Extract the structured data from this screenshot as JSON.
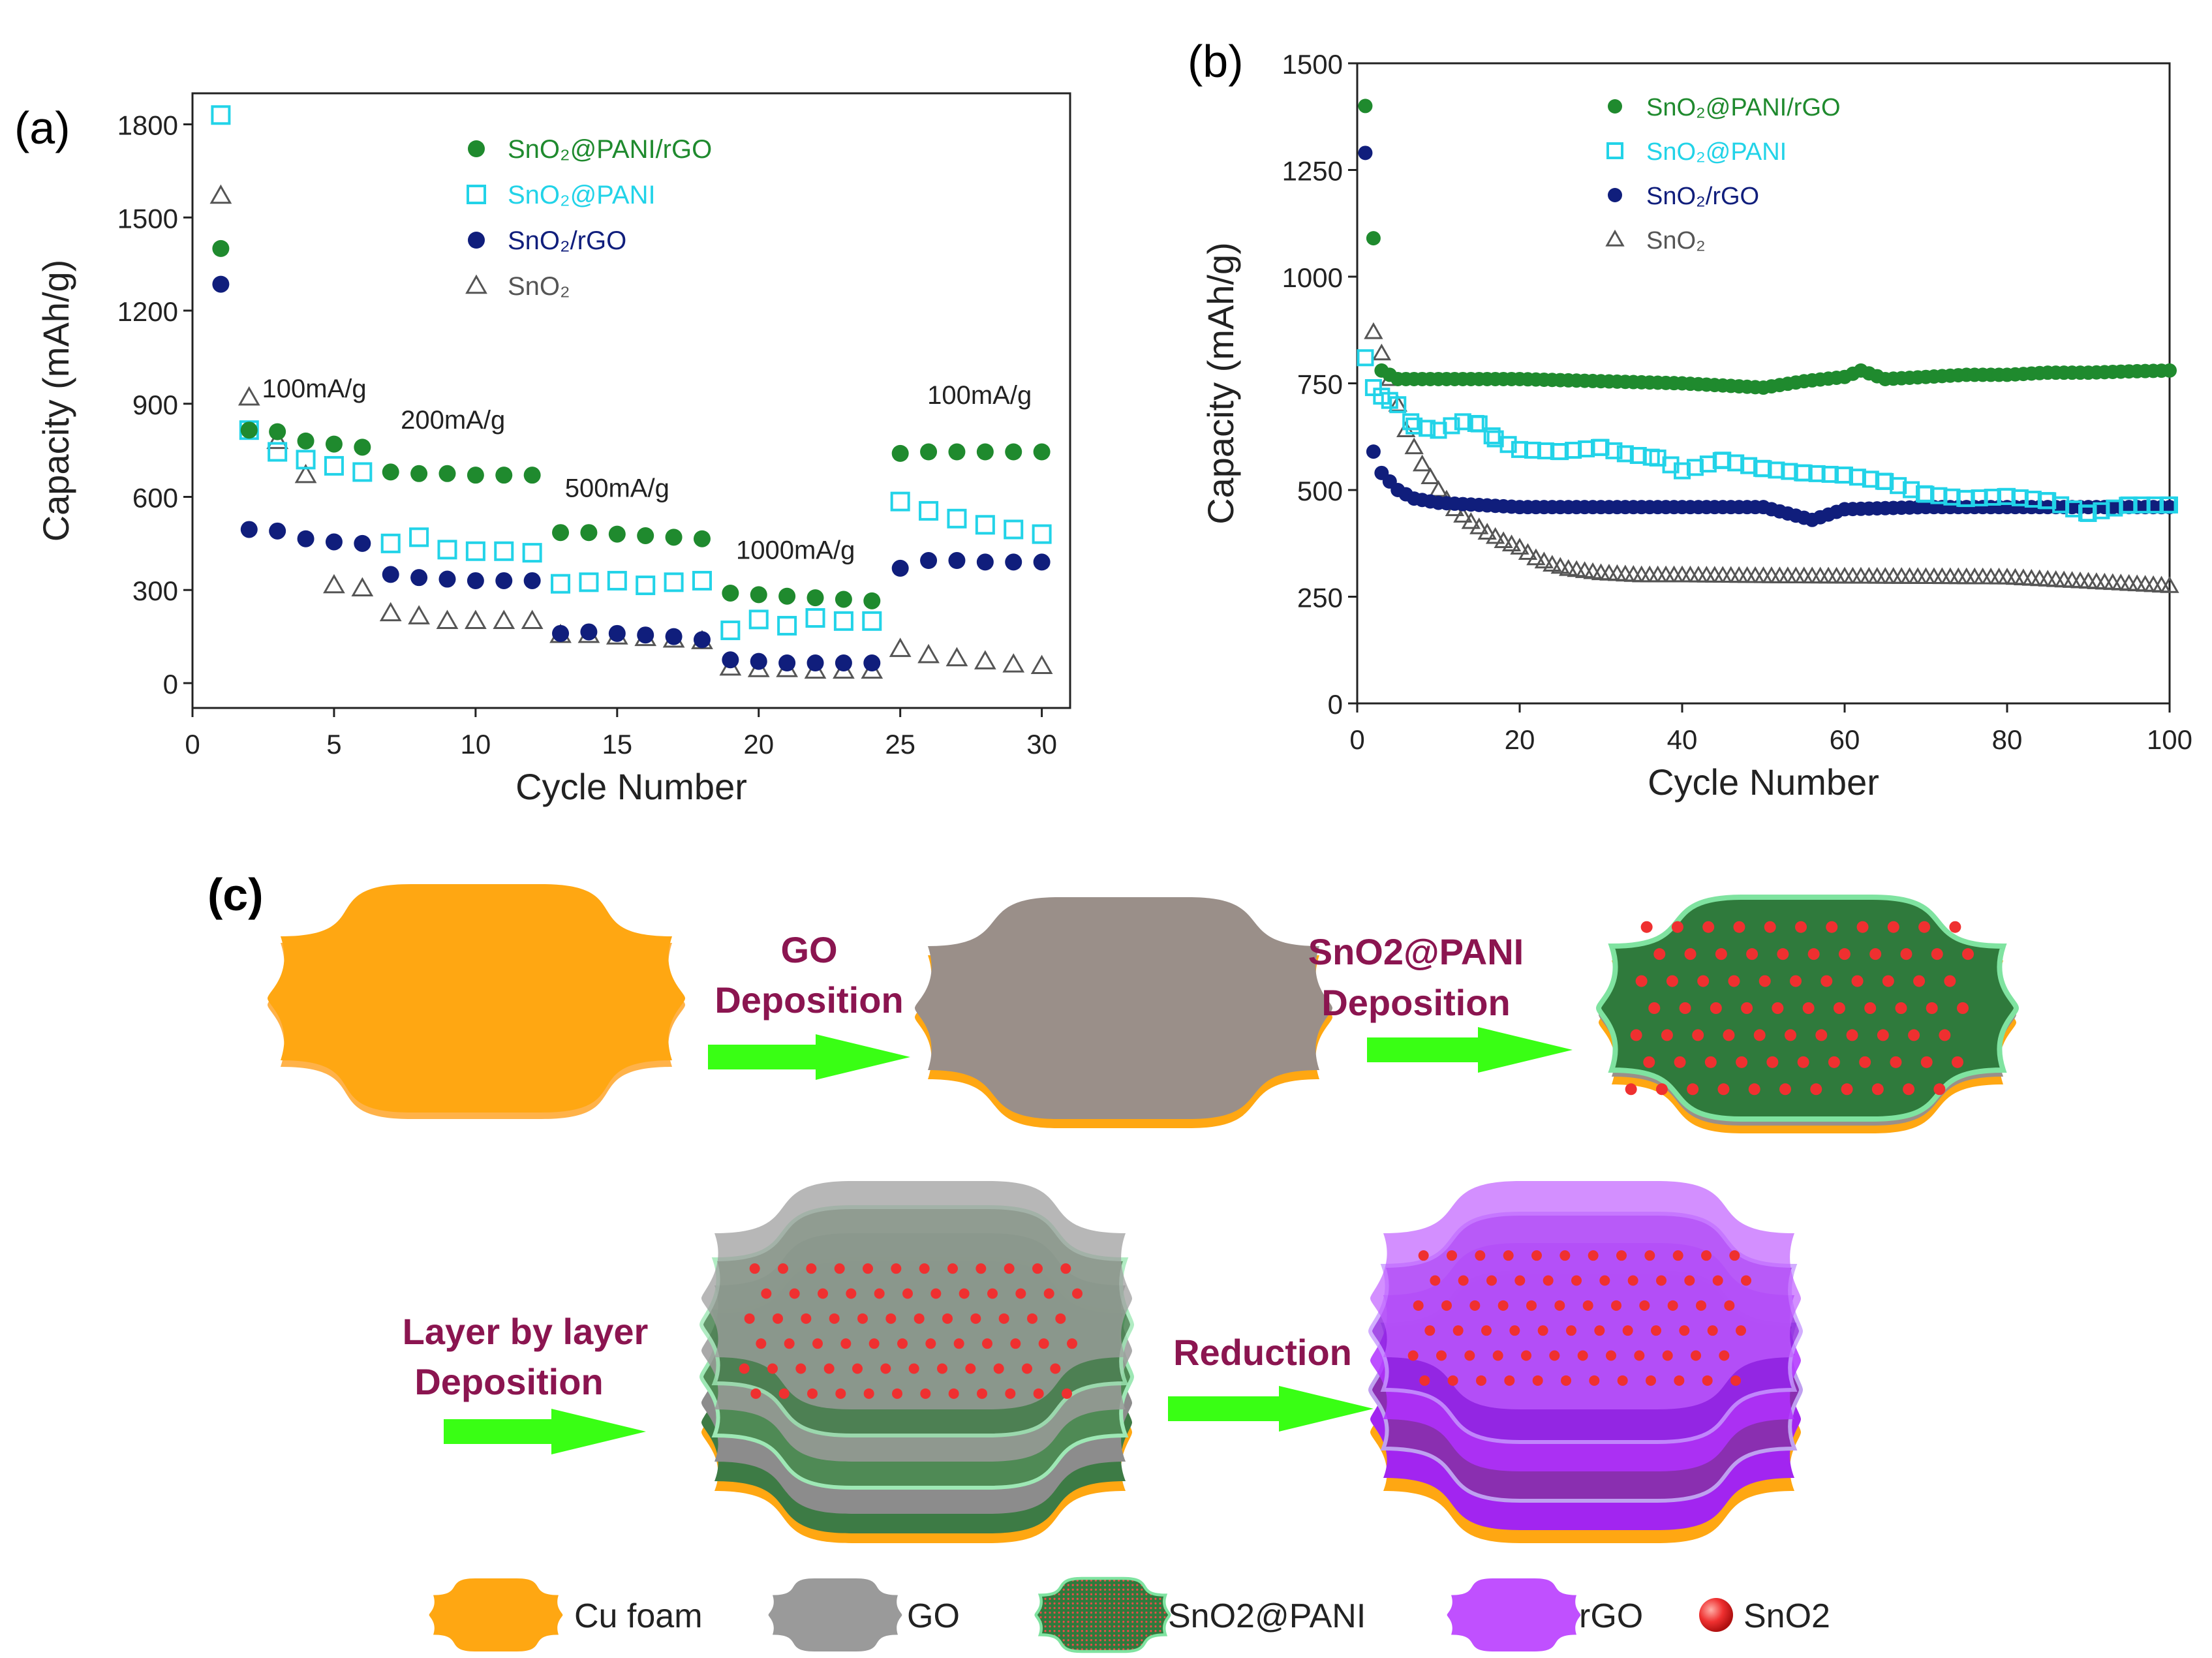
{
  "panel_a": {
    "label": "(a)"
  },
  "panel_b": {
    "label": "(b)"
  },
  "panel_c": {
    "label": "(c)",
    "step_go": [
      "GO",
      "Deposition"
    ],
    "step_sno2pani": [
      "SnO2@PANI",
      "Deposition"
    ],
    "step_lbl": [
      "Layer by layer",
      "Deposition"
    ],
    "step_reduction": [
      "Reduction"
    ],
    "legend": [
      "Cu foam",
      "GO",
      "SnO2@PANI",
      "rGO",
      "SnO2"
    ]
  },
  "colors": {
    "green": "#1f8a2e",
    "cyan": "#22d3e8",
    "navy": "#101e7c",
    "gray": "#555555",
    "copper": "#ffa712",
    "go": "#9a8f89",
    "magenta_text": "#8b1550",
    "arrow": "#39ff14",
    "rgo": "#b025ff",
    "sno2_dot": "#ef3030"
  },
  "chart_data": [
    {
      "type": "scatter",
      "xlabel": "Cycle Number",
      "ylabel": "Capacity (mAh/g)",
      "xlim": [
        0,
        31
      ],
      "ylim": [
        -80,
        1900
      ],
      "xticks": [
        0,
        5,
        10,
        15,
        20,
        25,
        30
      ],
      "yticks": [
        0,
        300,
        600,
        900,
        1200,
        1500,
        1800
      ],
      "legend_position": "top-center",
      "annotations": [
        {
          "text": "100mA/g",
          "x": 4.3,
          "y": 920
        },
        {
          "text": "200mA/g",
          "x": 9.2,
          "y": 820
        },
        {
          "text": "500mA/g",
          "x": 15.0,
          "y": 600
        },
        {
          "text": "1000mA/g",
          "x": 21.3,
          "y": 400
        },
        {
          "text": "100mA/g",
          "x": 27.8,
          "y": 900
        }
      ],
      "series": [
        {
          "name": "SnO₂@PANI/rGO",
          "marker": "filled-circle",
          "color": "#1f8a2e",
          "x": [
            1,
            2,
            3,
            4,
            5,
            6,
            7,
            8,
            9,
            10,
            11,
            12,
            13,
            14,
            15,
            16,
            17,
            18,
            19,
            20,
            21,
            22,
            23,
            24,
            25,
            26,
            27,
            28,
            29,
            30
          ],
          "y": [
            1400,
            815,
            810,
            780,
            770,
            760,
            680,
            675,
            675,
            670,
            670,
            670,
            485,
            485,
            480,
            475,
            470,
            465,
            290,
            285,
            280,
            275,
            270,
            265,
            740,
            745,
            745,
            745,
            745,
            745
          ]
        },
        {
          "name": "SnO₂@PANI",
          "marker": "open-square",
          "color": "#22d3e8",
          "x": [
            1,
            2,
            3,
            4,
            5,
            6,
            7,
            8,
            9,
            10,
            11,
            12,
            13,
            14,
            15,
            16,
            17,
            18,
            19,
            20,
            21,
            22,
            23,
            24,
            25,
            26,
            27,
            28,
            29,
            30
          ],
          "y": [
            1830,
            815,
            745,
            720,
            700,
            680,
            450,
            470,
            430,
            425,
            425,
            420,
            320,
            325,
            330,
            315,
            325,
            330,
            170,
            205,
            185,
            210,
            200,
            200,
            585,
            555,
            530,
            510,
            495,
            480
          ]
        },
        {
          "name": "SnO₂/rGO",
          "marker": "filled-circle",
          "color": "#101e7c",
          "x": [
            1,
            2,
            3,
            4,
            5,
            6,
            7,
            8,
            9,
            10,
            11,
            12,
            13,
            14,
            15,
            16,
            17,
            18,
            19,
            20,
            21,
            22,
            23,
            24,
            25,
            26,
            27,
            28,
            29,
            30
          ],
          "y": [
            1285,
            495,
            490,
            465,
            455,
            450,
            350,
            340,
            335,
            330,
            330,
            330,
            160,
            165,
            160,
            155,
            150,
            140,
            75,
            70,
            65,
            65,
            65,
            65,
            370,
            395,
            395,
            390,
            390,
            390
          ]
        },
        {
          "name": "SnO₂",
          "marker": "open-triangle",
          "color": "#555555",
          "x": [
            1,
            2,
            3,
            4,
            5,
            6,
            7,
            8,
            9,
            10,
            11,
            12,
            13,
            14,
            15,
            16,
            17,
            18,
            19,
            20,
            21,
            22,
            23,
            24,
            25,
            26,
            27,
            28,
            29,
            30
          ],
          "y": [
            1570,
            920,
            780,
            670,
            315,
            305,
            225,
            215,
            200,
            200,
            200,
            200,
            155,
            155,
            150,
            145,
            140,
            135,
            50,
            45,
            45,
            40,
            40,
            40,
            110,
            90,
            80,
            70,
            60,
            55
          ]
        }
      ]
    },
    {
      "type": "scatter",
      "xlabel": "Cycle Number",
      "ylabel": "Capacity (mAh/g)",
      "xlim": [
        0,
        100
      ],
      "ylim": [
        0,
        1500
      ],
      "xticks": [
        0,
        20,
        40,
        60,
        80,
        100
      ],
      "yticks": [
        0,
        250,
        500,
        750,
        1000,
        1250,
        1500
      ],
      "legend_position": "top-center",
      "series": [
        {
          "name": "SnO₂@PANI/rGO",
          "marker": "filled-circle",
          "color": "#1f8a2e",
          "x": [
            1,
            3,
            5,
            10,
            20,
            30,
            40,
            45,
            50,
            55,
            60,
            62,
            65,
            70,
            75,
            80,
            85,
            90,
            95,
            100
          ],
          "y": [
            1400,
            780,
            760,
            760,
            760,
            755,
            750,
            745,
            740,
            755,
            765,
            780,
            760,
            765,
            770,
            770,
            775,
            775,
            778,
            780
          ]
        },
        {
          "name": "SnO₂@PANI",
          "marker": "open-square",
          "color": "#22d3e8",
          "x": [
            1,
            2,
            3,
            5,
            7,
            10,
            13,
            15,
            17,
            20,
            25,
            30,
            33,
            37,
            40,
            45,
            50,
            55,
            60,
            65,
            70,
            75,
            80,
            85,
            90,
            95,
            100
          ],
          "y": [
            810,
            740,
            720,
            700,
            650,
            640,
            660,
            655,
            620,
            595,
            590,
            600,
            585,
            575,
            545,
            570,
            550,
            540,
            535,
            520,
            490,
            480,
            485,
            475,
            445,
            465,
            465
          ]
        },
        {
          "name": "SnO₂/rGO",
          "marker": "filled-circle",
          "color": "#101e7c",
          "x": [
            1,
            2,
            3,
            5,
            7,
            10,
            15,
            20,
            30,
            40,
            50,
            56,
            60,
            70,
            80,
            90,
            100
          ],
          "y": [
            1290,
            590,
            540,
            500,
            480,
            470,
            465,
            460,
            460,
            460,
            460,
            430,
            455,
            460,
            460,
            460,
            460
          ]
        },
        {
          "name": "SnO₂",
          "marker": "open-triangle",
          "color": "#555555",
          "x": [
            2,
            3,
            4,
            5,
            6,
            7,
            8,
            10,
            12,
            14,
            16,
            18,
            20,
            22,
            24,
            26,
            28,
            30,
            35,
            40,
            50,
            60,
            70,
            80,
            90,
            100
          ],
          "y": [
            870,
            820,
            760,
            700,
            640,
            600,
            560,
            500,
            455,
            425,
            400,
            380,
            365,
            340,
            325,
            315,
            310,
            305,
            300,
            300,
            298,
            297,
            296,
            295,
            285,
            275
          ]
        }
      ]
    }
  ]
}
